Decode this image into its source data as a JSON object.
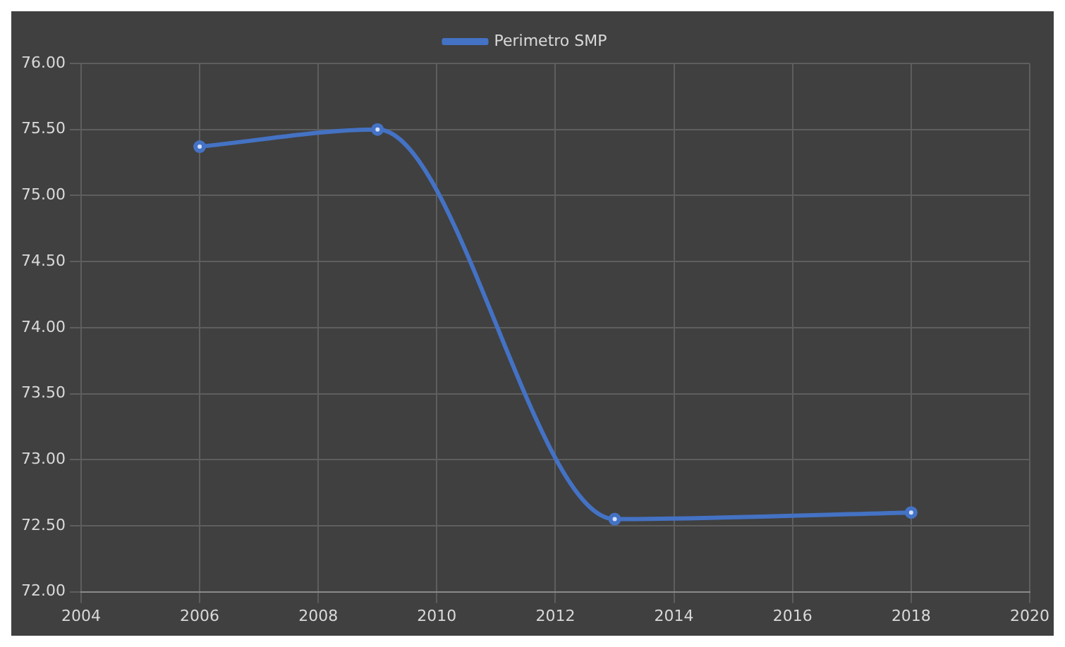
{
  "chart_data": {
    "type": "line",
    "x": [
      2006,
      2009,
      2013,
      2018
    ],
    "series": [
      {
        "name": "Perimetro SMP",
        "color": "#4472c4",
        "values": [
          75.37,
          75.5,
          72.55,
          72.6
        ]
      }
    ],
    "xlim": [
      2004,
      2020
    ],
    "xticks": [
      2004,
      2006,
      2008,
      2010,
      2012,
      2014,
      2016,
      2018,
      2020
    ],
    "ylim": [
      72,
      76
    ],
    "yticks": [
      {
        "value": 72,
        "label": "72.00"
      },
      {
        "value": 72.5,
        "label": "72.50"
      },
      {
        "value": 73,
        "label": "73.00"
      },
      {
        "value": 73.5,
        "label": "73.50"
      },
      {
        "value": 74,
        "label": "74.00"
      },
      {
        "value": 74.5,
        "label": "74.50"
      },
      {
        "value": 75,
        "label": "75.00"
      },
      {
        "value": 75.5,
        "label": "75.50"
      },
      {
        "value": 76,
        "label": "76.00"
      }
    ],
    "grid": true,
    "legend": "top",
    "marker": "circle",
    "line_style": "solid"
  }
}
